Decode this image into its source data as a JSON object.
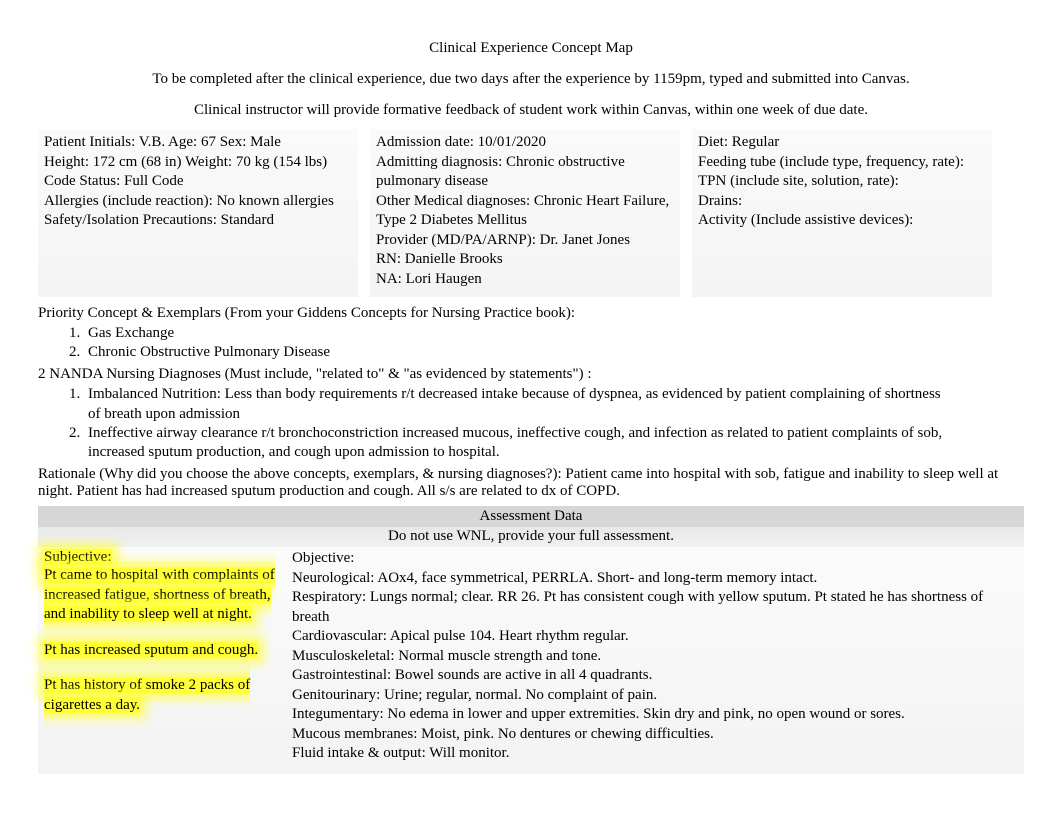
{
  "header": {
    "title": "Clinical Experience Concept Map",
    "subtitle": "To be completed after the clinical experience, due two days after the experience by 1159pm, typed and submitted into Canvas.",
    "instructor_note": "Clinical instructor will provide formative feedback of student work within Canvas, within one week of due date."
  },
  "patient": {
    "col1": {
      "initials_line": "Patient Initials: V.B.          Age: 67          Sex: Male",
      "height_weight": "Height: 172 cm (68 in)               Weight: 70 kg (154 lbs)",
      "code_status": "Code Status: Full Code",
      "allergies": "Allergies (include reaction): No known allergies",
      "safety": "Safety/Isolation Precautions: Standard"
    },
    "col2": {
      "admission": "Admission date: 10/01/2020",
      "admitting_dx": "Admitting diagnosis: Chronic obstructive pulmonary disease",
      "other_dx": "Other Medical diagnoses: Chronic Heart Failure, Type 2 Diabetes Mellitus",
      "provider": "Provider (MD/PA/ARNP): Dr. Janet Jones",
      "rn": "RN: Danielle Brooks",
      "na": "NA: Lori Haugen"
    },
    "col3": {
      "diet": "Diet: Regular",
      "feeding": "Feeding tube  (include type, frequency, rate):",
      "tpn": "TPN (include site, solution, rate):",
      "drains": "Drains:",
      "activity": "Activity (Include assistive devices):"
    }
  },
  "priority": {
    "label": "Priority Concept & Exemplars    (From your Giddens Concepts for Nursing Practice book):",
    "items": [
      "Gas Exchange",
      "Chronic Obstructive Pulmonary Disease"
    ]
  },
  "nanda": {
    "label": "2 NANDA Nursing Diagnoses  (Must include, \"related to\" & \"as evidenced by statements\") :",
    "items": [
      "Imbalanced Nutrition: Less than body requirements r/t decreased intake because of dyspnea, as evidenced by patient complaining of shortness of breath upon admission",
      "Ineffective airway clearance r/t bronchoconstriction increased mucous, ineffective cough, and infection as related to patient complaints of sob, increased sputum production, and cough upon admission to hospital."
    ]
  },
  "rationale": {
    "label": "Rationale  (Why did you choose the above concepts, exemplars, & nursing diagnoses?):  ",
    "text": "Patient came into hospital with sob, fatigue and inability to sleep well at night. Patient has had increased sputum production and cough. All s/s are related to dx of COPD."
  },
  "assessment": {
    "header": "Assessment Data ",
    "note": "Do not use WNL, provide your full assessment. ",
    "subjective": {
      "label": "Subjective:",
      "p1": "Pt came to hospital with complaints of increased fatigue, shortness of breath, and inability to sleep well at night.",
      "p2": "Pt has increased sputum and cough.",
      "p3": "Pt has history of smoke 2 packs of cigarettes a day."
    },
    "objective": {
      "label": "Objective:",
      "neuro": "Neurological:  AOx4, face symmetrical, PERRLA. Short- and long-term memory intact.",
      "resp": "Respiratory: Lungs normal; clear. RR 26. Pt has consistent cough with yellow sputum. Pt stated he has shortness of breath",
      "cardio": "Cardiovascular: Apical pulse 104. Heart rhythm regular.",
      "msk": "Musculoskeletal: Normal muscle strength and tone.",
      "gi": "Gastrointestinal: Bowel sounds are active in all 4 quadrants.",
      "gu": "Genitourinary: Urine; regular, normal. No complaint of pain.",
      "integ": "Integumentary: No edema in lower and upper extremities. Skin dry and pink, no open wound or sores.",
      "mucous": "Mucous membranes: Moist, pink. No dentures or chewing difficulties.",
      "fluid": "Fluid intake & output: Will monitor."
    }
  }
}
